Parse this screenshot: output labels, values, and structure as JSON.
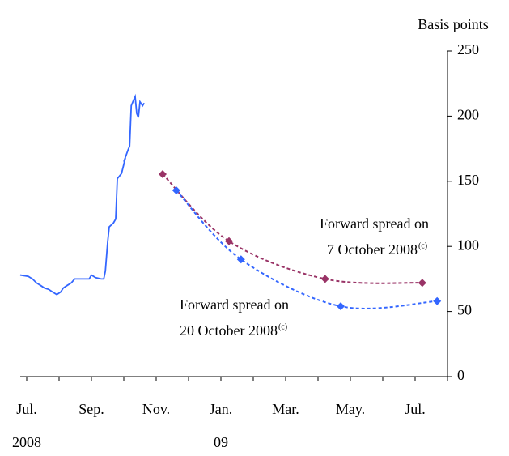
{
  "chart_data": {
    "type": "line",
    "y_label": "Basis points",
    "xlim": [
      -0.2,
      13
    ],
    "xticks": [
      {
        "value": 0,
        "label": "Jul."
      },
      {
        "value": 2,
        "label": "Sep."
      },
      {
        "value": 4,
        "label": "Nov."
      },
      {
        "value": 6,
        "label": "Jan."
      },
      {
        "value": 8,
        "label": "Mar."
      },
      {
        "value": 10,
        "label": "May."
      },
      {
        "value": 12,
        "label": "Jul."
      }
    ],
    "xminorticks": [
      1,
      3,
      5,
      7,
      9,
      11,
      13
    ],
    "xyears": [
      {
        "value": 0,
        "label": "2008"
      },
      {
        "value": 6,
        "label": "09"
      }
    ],
    "ylim": [
      0,
      250
    ],
    "yticks": [
      0,
      50,
      100,
      150,
      200,
      250
    ],
    "series": [
      {
        "color": "#3366ff",
        "style": "solid",
        "marker": null,
        "x": [
          -0.2,
          0.05,
          0.18,
          0.3,
          0.43,
          0.55,
          0.68,
          0.8,
          0.93,
          1.05,
          1.13,
          1.25,
          1.38,
          1.48,
          1.68,
          1.93,
          2.0,
          2.13,
          2.3,
          2.38,
          2.43,
          2.5,
          2.55,
          2.68,
          2.75,
          2.8,
          2.93,
          3.05,
          3.0,
          3.13,
          3.18,
          3.23,
          3.28,
          3.35,
          3.4,
          3.45,
          3.5,
          3.58,
          3.63
        ],
        "values": [
          78,
          77,
          75,
          72,
          70,
          68,
          67,
          65,
          63,
          65,
          68,
          70,
          72,
          75,
          75,
          75,
          78,
          76,
          75,
          75,
          81,
          103,
          115,
          118,
          121,
          152,
          156,
          168,
          165,
          174,
          177,
          208,
          211,
          215,
          202,
          199,
          211,
          208,
          210
        ]
      },
      {
        "color": "#993366",
        "style": "dotted",
        "marker": "diamond",
        "x": [
          4.2,
          6.25,
          9.22,
          12.22
        ],
        "values": [
          155.5,
          104,
          75,
          72
        ]
      },
      {
        "color": "#3366ff",
        "style": "dotted",
        "marker": "diamond",
        "x": [
          4.62,
          6.62,
          9.7,
          12.68
        ],
        "values": [
          143,
          90,
          54,
          58
        ]
      }
    ],
    "annotations": [
      {
        "lines": [
          "Forward spread on",
          "7 October 2008"
        ],
        "sup": "(c)"
      },
      {
        "lines": [
          "Forward spread on",
          "20 October 2008"
        ],
        "sup": "(c)"
      }
    ]
  }
}
